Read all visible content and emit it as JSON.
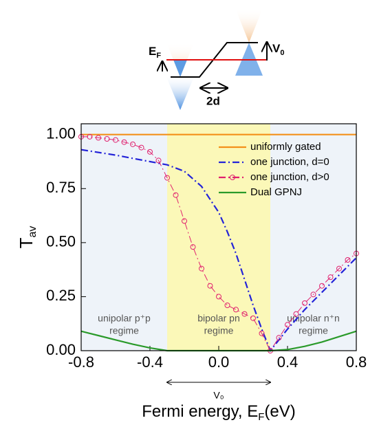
{
  "inset": {
    "ef_label": "E",
    "ef_sub": "F",
    "v0_label": "V",
    "v0_sub": "0",
    "width_label": "2d"
  },
  "chart_data": {
    "type": "line",
    "y_label": {
      "text": "T",
      "sub": "av"
    },
    "x_label": {
      "text": "Fermi energy, E",
      "sub": "F",
      "after": "(eV)"
    },
    "xlim": [
      -0.8,
      0.8
    ],
    "ylim": [
      0,
      1.05
    ],
    "xticks": [
      -0.8,
      -0.4,
      {
        "value": 0,
        "label": "0.0"
      },
      0.4,
      0.8
    ],
    "yticks": [
      {
        "value": 0,
        "label": "0.00"
      },
      {
        "value": 0.25,
        "label": "0.25"
      },
      {
        "value": 0.5,
        "label": "0.50"
      },
      {
        "value": 0.75,
        "label": "0.75"
      },
      {
        "value": 1,
        "label": "1.00"
      }
    ],
    "regions": [
      {
        "x": [
          -0.8,
          -0.3
        ],
        "color": "#eef3f9",
        "lines": [
          "unipolar p⁺p",
          "regime"
        ]
      },
      {
        "x": [
          -0.3,
          0.3
        ],
        "color": "#fbf8b8",
        "lines": [
          "bipolar pn",
          "regime"
        ]
      },
      {
        "x": [
          0.3,
          0.8
        ],
        "color": "#eef3f9",
        "lines": [
          "unipolar n⁺n",
          "regime"
        ]
      }
    ],
    "span_annotation": "V₀",
    "legend": "upper right",
    "series": [
      {
        "name": "uniformly gated",
        "color": "#f39019",
        "dash": "solid",
        "x": [
          -0.8,
          0.8
        ],
        "values": [
          1,
          1
        ]
      },
      {
        "name": "one junction, d=0",
        "color": "#2323d8",
        "dash": "dashdot",
        "x": [
          -0.8,
          -0.6,
          -0.4,
          -0.3,
          -0.2,
          -0.1,
          0,
          0.05,
          0.1,
          0.15,
          0.2,
          0.25,
          0.3,
          0.4,
          0.5,
          0.6,
          0.7,
          0.8
        ],
        "values": [
          0.93,
          0.905,
          0.875,
          0.86,
          0.83,
          0.76,
          0.64,
          0.55,
          0.45,
          0.33,
          0.21,
          0.1,
          0,
          0.1,
          0.19,
          0.27,
          0.35,
          0.43
        ]
      },
      {
        "name": "one junction, d>0",
        "color": "#e0206e",
        "dash": "dashdot",
        "marker": "circle",
        "x": [
          -0.8,
          -0.75,
          -0.7,
          -0.65,
          -0.6,
          -0.55,
          -0.5,
          -0.45,
          -0.4,
          -0.35,
          -0.3,
          -0.25,
          -0.2,
          -0.15,
          -0.1,
          -0.05,
          0,
          0.05,
          0.1,
          0.15,
          0.2,
          0.25,
          0.3,
          0.35,
          0.4,
          0.45,
          0.5,
          0.55,
          0.6,
          0.65,
          0.7,
          0.75,
          0.8
        ],
        "values": [
          0.99,
          0.99,
          0.985,
          0.98,
          0.975,
          0.965,
          0.955,
          0.94,
          0.92,
          0.88,
          0.8,
          0.72,
          0.6,
          0.48,
          0.38,
          0.3,
          0.25,
          0.21,
          0.19,
          0.17,
          0.15,
          0.08,
          0,
          0.06,
          0.12,
          0.17,
          0.22,
          0.26,
          0.3,
          0.34,
          0.38,
          0.42,
          0.45
        ]
      },
      {
        "name": "Dual GPNJ",
        "color": "#2a9a2a",
        "dash": "solid",
        "x": [
          -0.8,
          -0.7,
          -0.6,
          -0.5,
          -0.4,
          -0.3,
          0.3,
          0.4,
          0.5,
          0.6,
          0.7,
          0.8
        ],
        "values": [
          0.09,
          0.07,
          0.05,
          0.03,
          0.013,
          0,
          0,
          0.005,
          0.02,
          0.04,
          0.065,
          0.09
        ]
      }
    ]
  }
}
